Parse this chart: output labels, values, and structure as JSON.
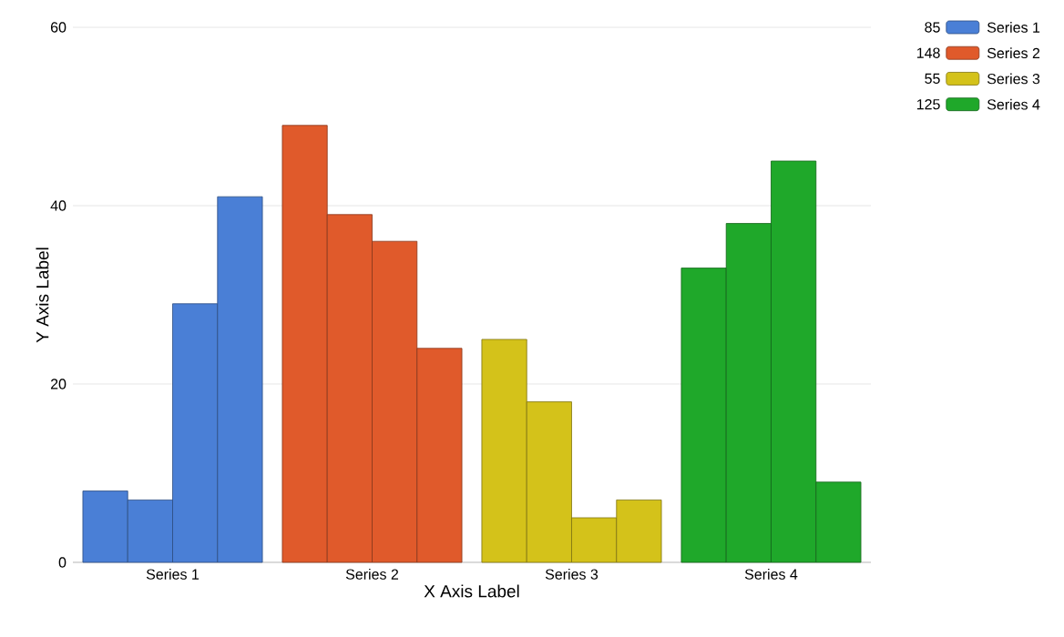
{
  "chart_data": {
    "type": "bar",
    "xlabel": "X Axis Label",
    "ylabel": "Y Axis Label",
    "categories": [
      "Series 1",
      "Series 2",
      "Series 3",
      "Series 4"
    ],
    "series": [
      {
        "values": [
          8,
          49,
          25,
          33
        ],
        "colors": [
          "#4a7fd6",
          "#e05a2b",
          "#d4c21a",
          "#1fa82a"
        ]
      },
      {
        "values": [
          7,
          39,
          18,
          38
        ],
        "colors": [
          "#4a7fd6",
          "#e05a2b",
          "#d4c21a",
          "#1fa82a"
        ]
      },
      {
        "values": [
          29,
          36,
          5,
          45
        ],
        "colors": [
          "#4a7fd6",
          "#e05a2b",
          "#d4c21a",
          "#1fa82a"
        ]
      },
      {
        "values": [
          41,
          24,
          7,
          9
        ],
        "colors": [
          "#4a7fd6",
          "#e05a2b",
          "#d4c21a",
          "#1fa82a"
        ]
      }
    ],
    "annotations": [
      "85",
      "148",
      "55",
      "125"
    ],
    "ylim": [
      0,
      60
    ],
    "yticks": [
      0,
      20,
      40,
      60
    ],
    "grid": "y"
  }
}
